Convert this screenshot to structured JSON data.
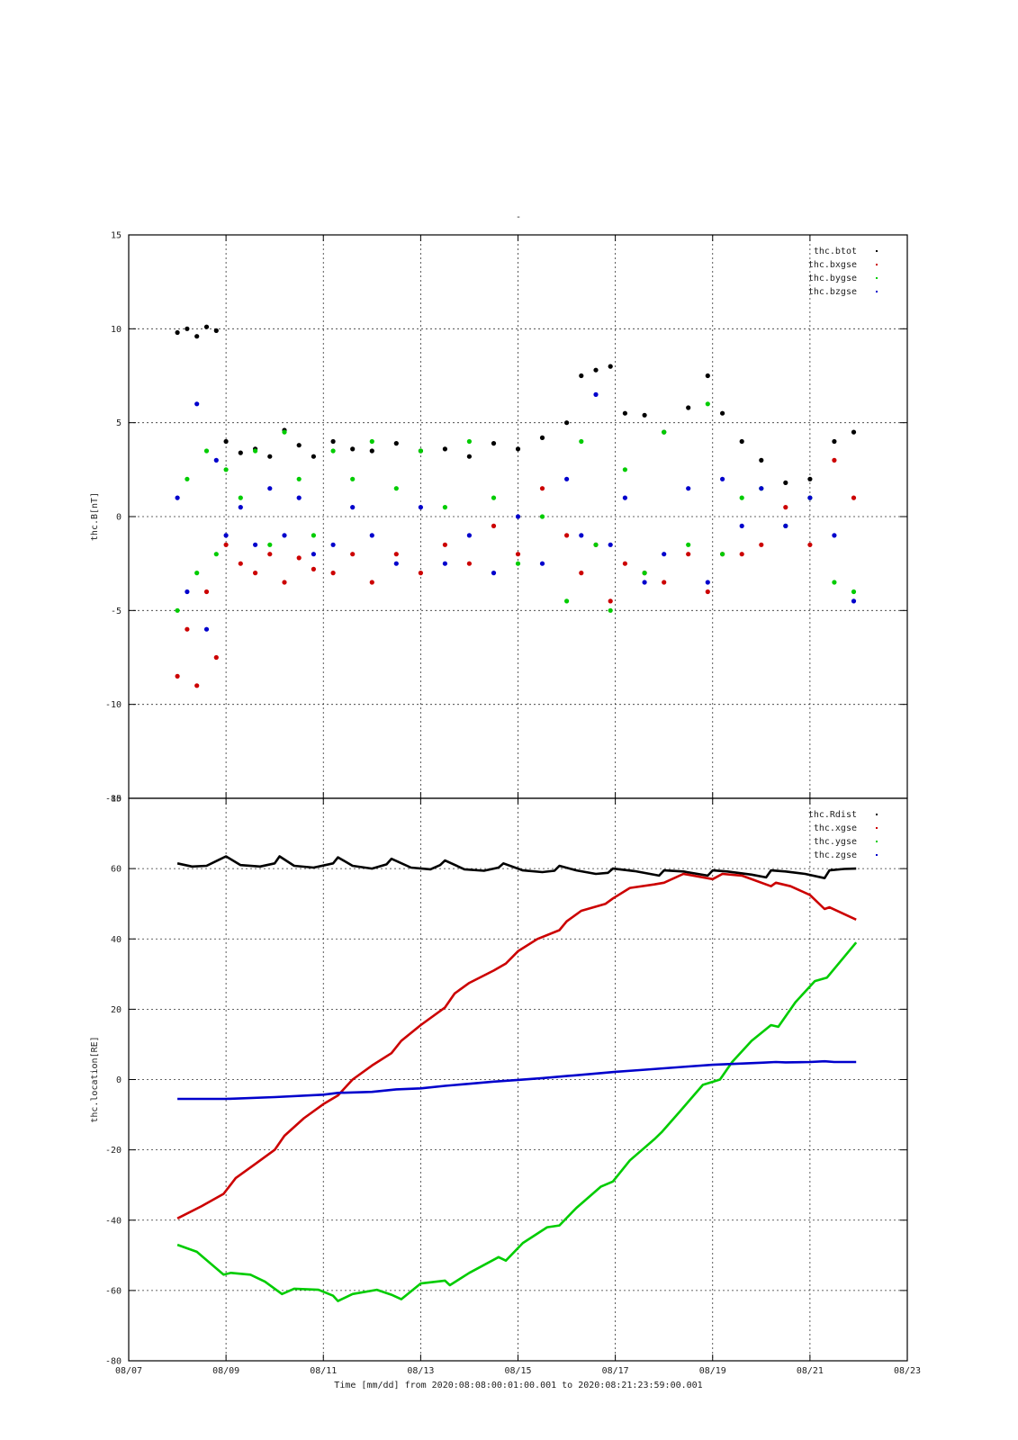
{
  "top_title": "-",
  "footer_label": "Time [mm/dd]  from 2020:08:08:00:01:00.001  to  2020:08:21:23:59:00.001",
  "chart_data": [
    {
      "type": "scatter",
      "ylabel": "thc.B[nT]",
      "xlim": [
        "2020-08-07",
        "2020-08-23"
      ],
      "ylim": [
        -15,
        15
      ],
      "yticks": [
        -15,
        -10,
        -5,
        0,
        5,
        10,
        15
      ],
      "grid": true,
      "legend_position": "top-right",
      "series": [
        {
          "name": "thc.btot",
          "color": "#000000",
          "x": [
            8.0,
            8.2,
            8.4,
            8.6,
            8.8,
            9.0,
            9.3,
            9.6,
            9.9,
            10.2,
            10.5,
            10.8,
            11.2,
            11.6,
            12.0,
            12.5,
            13.0,
            13.5,
            14.0,
            14.5,
            15.0,
            15.5,
            16.0,
            16.3,
            16.6,
            16.9,
            17.2,
            17.6,
            18.0,
            18.5,
            18.9,
            19.2,
            19.6,
            20.0,
            20.5,
            21.0,
            21.5,
            21.9
          ],
          "y": [
            9.8,
            10.0,
            9.6,
            10.1,
            9.9,
            4.0,
            3.4,
            3.6,
            3.2,
            4.6,
            3.8,
            3.2,
            4.0,
            3.6,
            3.5,
            3.9,
            3.5,
            3.6,
            3.2,
            3.9,
            3.6,
            4.2,
            5.0,
            7.5,
            7.8,
            8.0,
            5.5,
            5.4,
            4.5,
            5.8,
            7.5,
            5.5,
            4.0,
            3.0,
            1.8,
            2.0,
            4.0,
            4.5
          ]
        },
        {
          "name": "thc.bxgse",
          "color": "#cc0000",
          "x": [
            8.0,
            8.2,
            8.4,
            8.6,
            8.8,
            9.0,
            9.3,
            9.6,
            9.9,
            10.2,
            10.5,
            10.8,
            11.2,
            11.6,
            12.0,
            12.5,
            13.0,
            13.5,
            14.0,
            14.5,
            15.0,
            15.5,
            16.0,
            16.3,
            16.6,
            16.9,
            17.2,
            17.6,
            18.0,
            18.5,
            18.9,
            19.2,
            19.6,
            20.0,
            20.5,
            21.0,
            21.5,
            21.9
          ],
          "y": [
            -8.5,
            -6.0,
            -9.0,
            -4.0,
            -7.5,
            -1.5,
            -2.5,
            -3.0,
            -2.0,
            -3.5,
            -2.2,
            -2.8,
            -3.0,
            -2.0,
            -3.5,
            -2.0,
            -3.0,
            -1.5,
            -2.5,
            -0.5,
            -2.0,
            1.5,
            -1.0,
            -3.0,
            -1.5,
            -4.5,
            -2.5,
            -3.0,
            -3.5,
            -2.0,
            -4.0,
            -2.0,
            -2.0,
            -1.5,
            0.5,
            -1.5,
            3.0,
            1.0
          ]
        },
        {
          "name": "thc.bygse",
          "color": "#00cc00",
          "x": [
            8.0,
            8.2,
            8.4,
            8.6,
            8.8,
            9.0,
            9.3,
            9.6,
            9.9,
            10.2,
            10.5,
            10.8,
            11.2,
            11.6,
            12.0,
            12.5,
            13.0,
            13.5,
            14.0,
            14.5,
            15.0,
            15.5,
            16.0,
            16.3,
            16.6,
            16.9,
            17.2,
            17.6,
            18.0,
            18.5,
            18.9,
            19.2,
            19.6,
            20.0,
            20.5,
            21.0,
            21.5,
            21.9
          ],
          "y": [
            -5.0,
            2.0,
            -3.0,
            3.5,
            -2.0,
            2.5,
            1.0,
            3.5,
            -1.5,
            4.5,
            2.0,
            -1.0,
            3.5,
            2.0,
            4.0,
            1.5,
            3.5,
            0.5,
            4.0,
            1.0,
            -2.5,
            0.0,
            -4.5,
            4.0,
            -1.5,
            -5.0,
            2.5,
            -3.0,
            4.5,
            -1.5,
            6.0,
            -2.0,
            1.0,
            1.5,
            -0.5,
            1.0,
            -3.5,
            -4.0
          ]
        },
        {
          "name": "thc.bzgse",
          "color": "#0000cc",
          "x": [
            8.0,
            8.2,
            8.4,
            8.6,
            8.8,
            9.0,
            9.3,
            9.6,
            9.9,
            10.2,
            10.5,
            10.8,
            11.2,
            11.6,
            12.0,
            12.5,
            13.0,
            13.5,
            14.0,
            14.5,
            15.0,
            15.5,
            16.0,
            16.3,
            16.6,
            16.9,
            17.2,
            17.6,
            18.0,
            18.5,
            18.9,
            19.2,
            19.6,
            20.0,
            20.5,
            21.0,
            21.5,
            21.9
          ],
          "y": [
            1.0,
            -4.0,
            6.0,
            -6.0,
            3.0,
            -1.0,
            0.5,
            -1.5,
            1.5,
            -1.0,
            1.0,
            -2.0,
            -1.5,
            0.5,
            -1.0,
            -2.5,
            0.5,
            -2.5,
            -1.0,
            -3.0,
            0.0,
            -2.5,
            2.0,
            -1.0,
            6.5,
            -1.5,
            1.0,
            -3.5,
            -2.0,
            1.5,
            -3.5,
            2.0,
            -0.5,
            1.5,
            -0.5,
            1.0,
            -1.0,
            -4.5
          ]
        }
      ]
    },
    {
      "type": "line",
      "ylabel": "thc.location[RE]",
      "xlabel": "Time [mm/dd]  from 2020:08:08:00:01:00.001  to  2020:08:21:23:59:00.001",
      "xlim": [
        "2020-08-07",
        "2020-08-23"
      ],
      "xticks": [
        "08/07",
        "08/09",
        "08/11",
        "08/13",
        "08/15",
        "08/17",
        "08/19",
        "08/21",
        "08/23"
      ],
      "ylim": [
        -80,
        80
      ],
      "yticks": [
        -80,
        -60,
        -40,
        -20,
        0,
        20,
        40,
        60,
        80
      ],
      "grid": true,
      "legend_position": "top-right",
      "series": [
        {
          "name": "thc.Rdist",
          "color": "#000000",
          "x": [
            8.0,
            8.3,
            8.6,
            8.85,
            9.0,
            9.3,
            9.7,
            10.0,
            10.1,
            10.4,
            10.8,
            11.2,
            11.3,
            11.6,
            12.0,
            12.3,
            12.4,
            12.8,
            13.2,
            13.4,
            13.5,
            13.9,
            14.3,
            14.6,
            14.7,
            15.1,
            15.5,
            15.75,
            15.85,
            16.2,
            16.6,
            16.85,
            16.95,
            17.4,
            17.9,
            18.0,
            18.4,
            18.9,
            19.0,
            19.3,
            19.8,
            20.1,
            20.2,
            20.5,
            20.9,
            21.3,
            21.4,
            21.7,
            21.95
          ],
          "y": [
            61.5,
            60.6,
            60.8,
            62.5,
            63.5,
            61.0,
            60.6,
            61.5,
            63.5,
            60.8,
            60.3,
            61.5,
            63.2,
            60.8,
            60.0,
            61.2,
            62.8,
            60.3,
            59.8,
            61.0,
            62.3,
            59.8,
            59.4,
            60.3,
            61.5,
            59.5,
            59.0,
            59.4,
            60.8,
            59.5,
            58.5,
            58.8,
            60.0,
            59.3,
            58.0,
            59.5,
            59.2,
            58.0,
            59.5,
            59.2,
            58.3,
            57.5,
            59.5,
            59.2,
            58.5,
            57.3,
            59.5,
            59.9,
            60.0
          ]
        },
        {
          "name": "thc.xgse",
          "color": "#cc0000",
          "x": [
            8.0,
            8.5,
            8.95,
            9.2,
            9.6,
            10.0,
            10.2,
            10.6,
            11.0,
            11.3,
            11.6,
            12.0,
            12.4,
            12.6,
            13.0,
            13.5,
            13.7,
            14.0,
            14.5,
            14.75,
            15.0,
            15.4,
            15.85,
            16.0,
            16.3,
            16.8,
            16.95,
            17.3,
            17.8,
            18.0,
            18.4,
            19.0,
            19.2,
            19.6,
            20.2,
            20.3,
            20.6,
            21.0,
            21.3,
            21.4,
            21.95
          ],
          "y": [
            -39.5,
            -36.0,
            -32.5,
            -28.0,
            -24.0,
            -20.0,
            -16.0,
            -11.0,
            -7.0,
            -4.5,
            0.0,
            4.0,
            7.5,
            11.0,
            15.5,
            20.5,
            24.5,
            27.5,
            31.0,
            33.0,
            36.5,
            40.0,
            42.5,
            45.0,
            48.0,
            50.0,
            51.5,
            54.5,
            55.5,
            56.0,
            58.5,
            57.0,
            58.5,
            58.0,
            55.0,
            56.0,
            55.0,
            52.5,
            48.5,
            49.0,
            45.5
          ]
        },
        {
          "name": "thc.ygse",
          "color": "#00cc00",
          "x": [
            8.0,
            8.4,
            8.95,
            9.1,
            9.5,
            9.8,
            10.0,
            10.15,
            10.4,
            10.9,
            11.2,
            11.3,
            11.6,
            12.1,
            12.4,
            12.6,
            13.0,
            13.5,
            13.6,
            14.0,
            14.6,
            14.75,
            15.1,
            15.6,
            15.85,
            16.2,
            16.7,
            16.95,
            17.3,
            17.8,
            17.95,
            18.3,
            18.8,
            19.15,
            19.4,
            19.8,
            20.2,
            20.35,
            20.7,
            21.1,
            21.35,
            21.95
          ],
          "y": [
            -47.0,
            -49.0,
            -55.5,
            -55.0,
            -55.5,
            -57.5,
            -59.5,
            -61.0,
            -59.5,
            -59.8,
            -61.5,
            -63.0,
            -61.0,
            -59.8,
            -61.2,
            -62.5,
            -58.0,
            -57.2,
            -58.5,
            -55.0,
            -50.5,
            -51.5,
            -46.5,
            -42.0,
            -41.5,
            -36.5,
            -30.5,
            -29.0,
            -23.0,
            -17.0,
            -15.0,
            -9.5,
            -1.5,
            0.0,
            5.0,
            11.0,
            15.5,
            15.0,
            22.0,
            28.0,
            29.0,
            39.0
          ]
        },
        {
          "name": "thc.zgse",
          "color": "#0000cc",
          "x": [
            8.0,
            9.0,
            10.0,
            11.0,
            11.3,
            12.0,
            12.5,
            13.0,
            13.5,
            14.0,
            14.5,
            15.0,
            15.5,
            16.0,
            16.5,
            17.0,
            17.5,
            18.0,
            18.5,
            19.0,
            19.5,
            20.0,
            20.3,
            20.5,
            21.0,
            21.3,
            21.5,
            21.95
          ],
          "y": [
            -5.5,
            -5.5,
            -5.0,
            -4.3,
            -3.8,
            -3.5,
            -2.8,
            -2.5,
            -1.8,
            -1.2,
            -0.6,
            -0.1,
            0.4,
            1.0,
            1.6,
            2.2,
            2.7,
            3.2,
            3.7,
            4.2,
            4.5,
            4.8,
            5.0,
            4.9,
            5.0,
            5.2,
            5.0,
            5.0
          ]
        }
      ]
    }
  ]
}
